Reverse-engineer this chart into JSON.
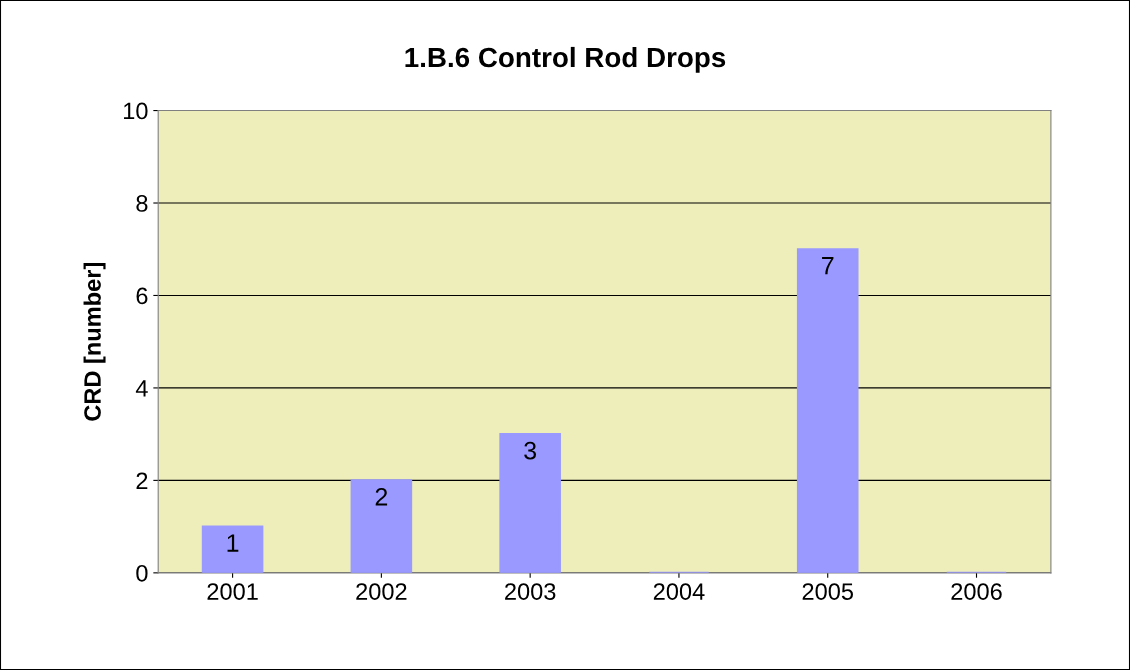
{
  "chart_data": {
    "type": "bar",
    "title": "1.B.6 Control Rod Drops",
    "ylabel": "CRD [number]",
    "categories": [
      "2001",
      "2002",
      "2003",
      "2004",
      "2005",
      "2006"
    ],
    "values": [
      1,
      2,
      3,
      0,
      7,
      0
    ],
    "value_labels": [
      "1",
      "2",
      "3",
      null,
      "7",
      null
    ],
    "color": "#9999ff",
    "ylim": [
      0,
      10
    ],
    "yticks": [
      0,
      2,
      4,
      6,
      8,
      10
    ],
    "grid": "y",
    "legend": false
  }
}
